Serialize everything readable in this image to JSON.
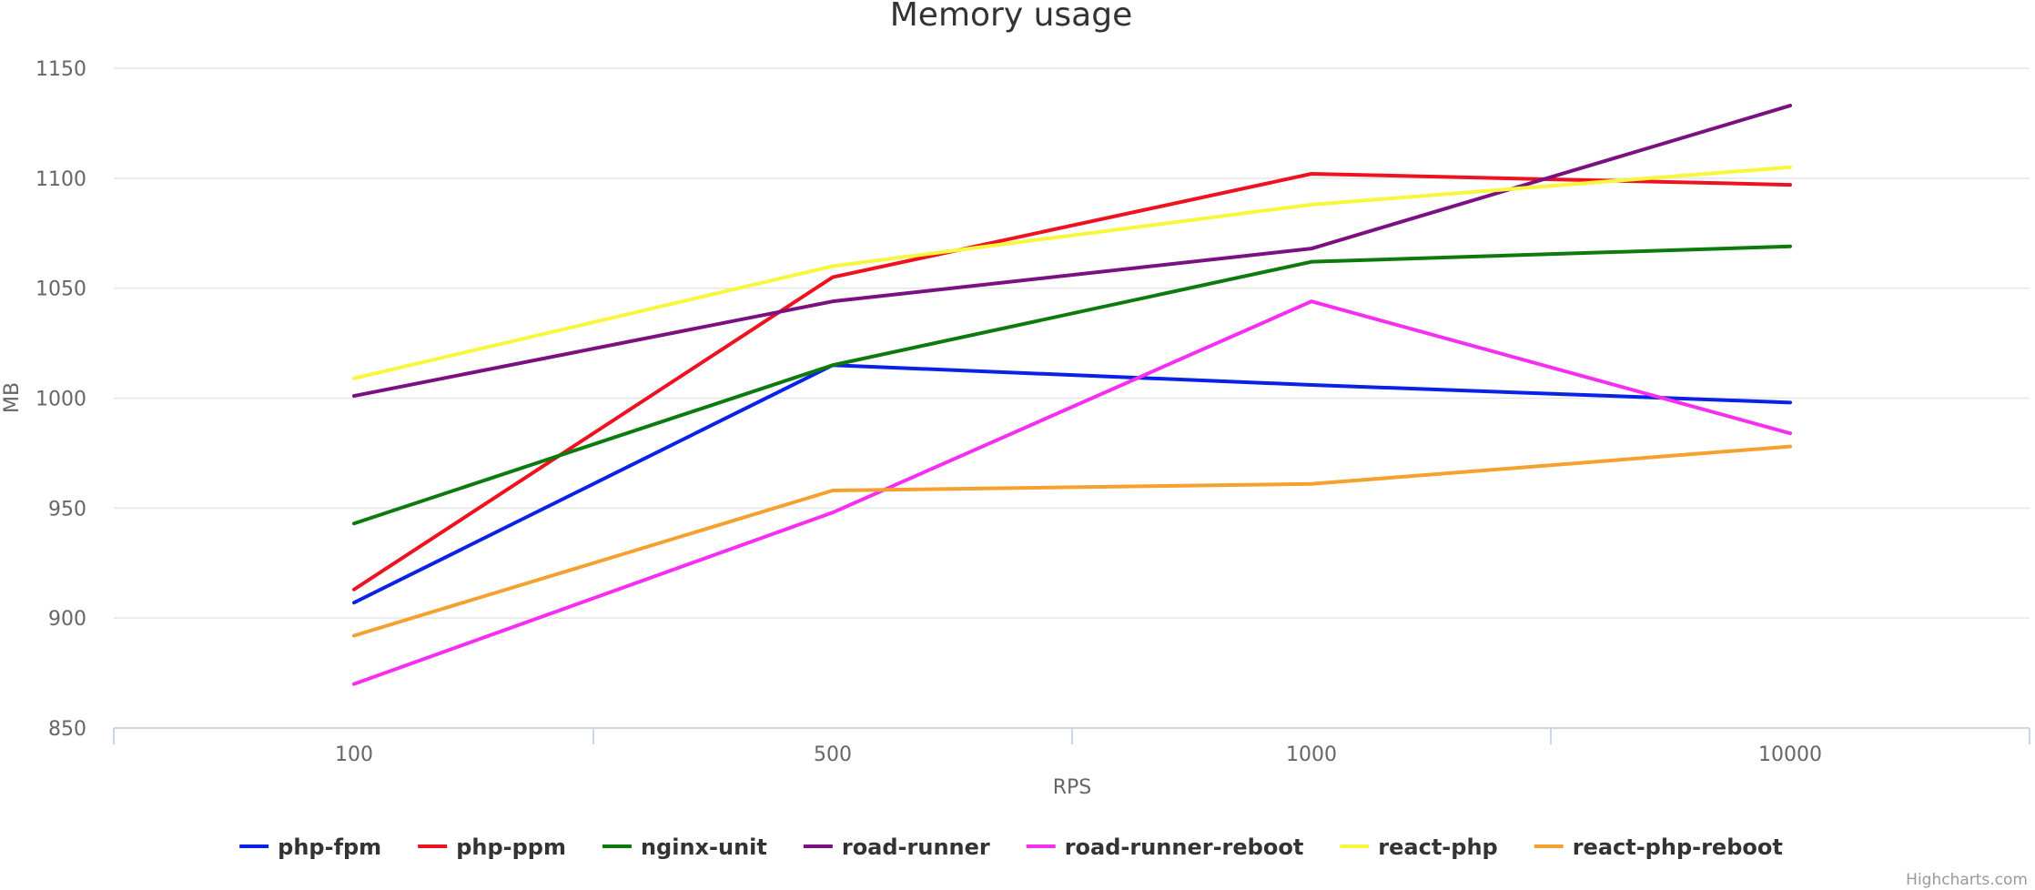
{
  "chart_data": {
    "type": "line",
    "title": "Memory usage",
    "xlabel": "RPS",
    "ylabel": "MB",
    "categories": [
      "100",
      "500",
      "1000",
      "10000"
    ],
    "ylim": [
      850,
      1150
    ],
    "yticks": [
      850,
      900,
      950,
      1000,
      1050,
      1100,
      1150
    ],
    "grid": true,
    "legend_position": "bottom-center",
    "credits": "Highcharts.com",
    "series": [
      {
        "name": "php-fpm",
        "color": "#0a22e6",
        "values": [
          907,
          1015,
          1006,
          998
        ]
      },
      {
        "name": "php-ppm",
        "color": "#ee1120",
        "values": [
          913,
          1055,
          1102,
          1097
        ]
      },
      {
        "name": "nginx-unit",
        "color": "#0d7a0d",
        "values": [
          943,
          1015,
          1062,
          1069
        ]
      },
      {
        "name": "road-runner",
        "color": "#7b1080",
        "values": [
          1001,
          1044,
          1068,
          1133
        ]
      },
      {
        "name": "road-runner-reboot",
        "color": "#f52ef2",
        "values": [
          870,
          948,
          1044,
          984
        ]
      },
      {
        "name": "react-php",
        "color": "#f8f73b",
        "values": [
          1009,
          1060,
          1088,
          1105
        ]
      },
      {
        "name": "react-php-reboot",
        "color": "#f5a12f",
        "values": [
          892,
          958,
          961,
          978
        ]
      }
    ]
  }
}
